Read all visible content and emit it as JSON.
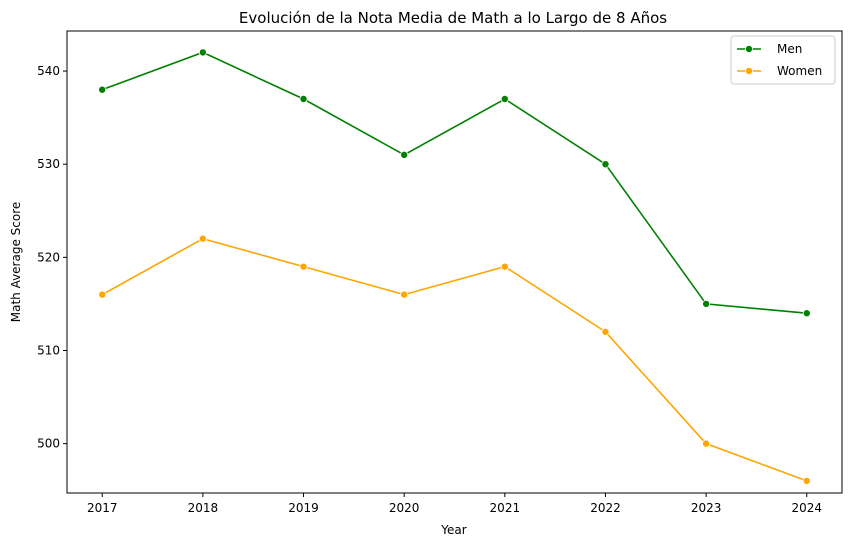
{
  "chart_data": {
    "type": "line",
    "title": "Evolución de la Nota Media de Math a lo Largo de 8 Años",
    "xlabel": "Year",
    "ylabel": "Math Average Score",
    "x": [
      2017,
      2018,
      2019,
      2020,
      2021,
      2022,
      2023,
      2024
    ],
    "x_ticks": [
      "2017",
      "2018",
      "2019",
      "2020",
      "2021",
      "2022",
      "2023",
      "2024"
    ],
    "y_ticks": [
      500,
      510,
      520,
      530,
      540
    ],
    "y_tick_labels": [
      "500",
      "510",
      "520",
      "530",
      "540"
    ],
    "xlim": [
      2016.65,
      2024.35
    ],
    "ylim": [
      494.7,
      544.3
    ],
    "grid": false,
    "legend_position": "top-right",
    "series": [
      {
        "name": "Men",
        "color": "#008000",
        "values": [
          538,
          542,
          537,
          531,
          537,
          530,
          515,
          514
        ]
      },
      {
        "name": "Women",
        "color": "#ffa500",
        "values": [
          516,
          522,
          519,
          516,
          519,
          512,
          500,
          496
        ]
      }
    ]
  }
}
